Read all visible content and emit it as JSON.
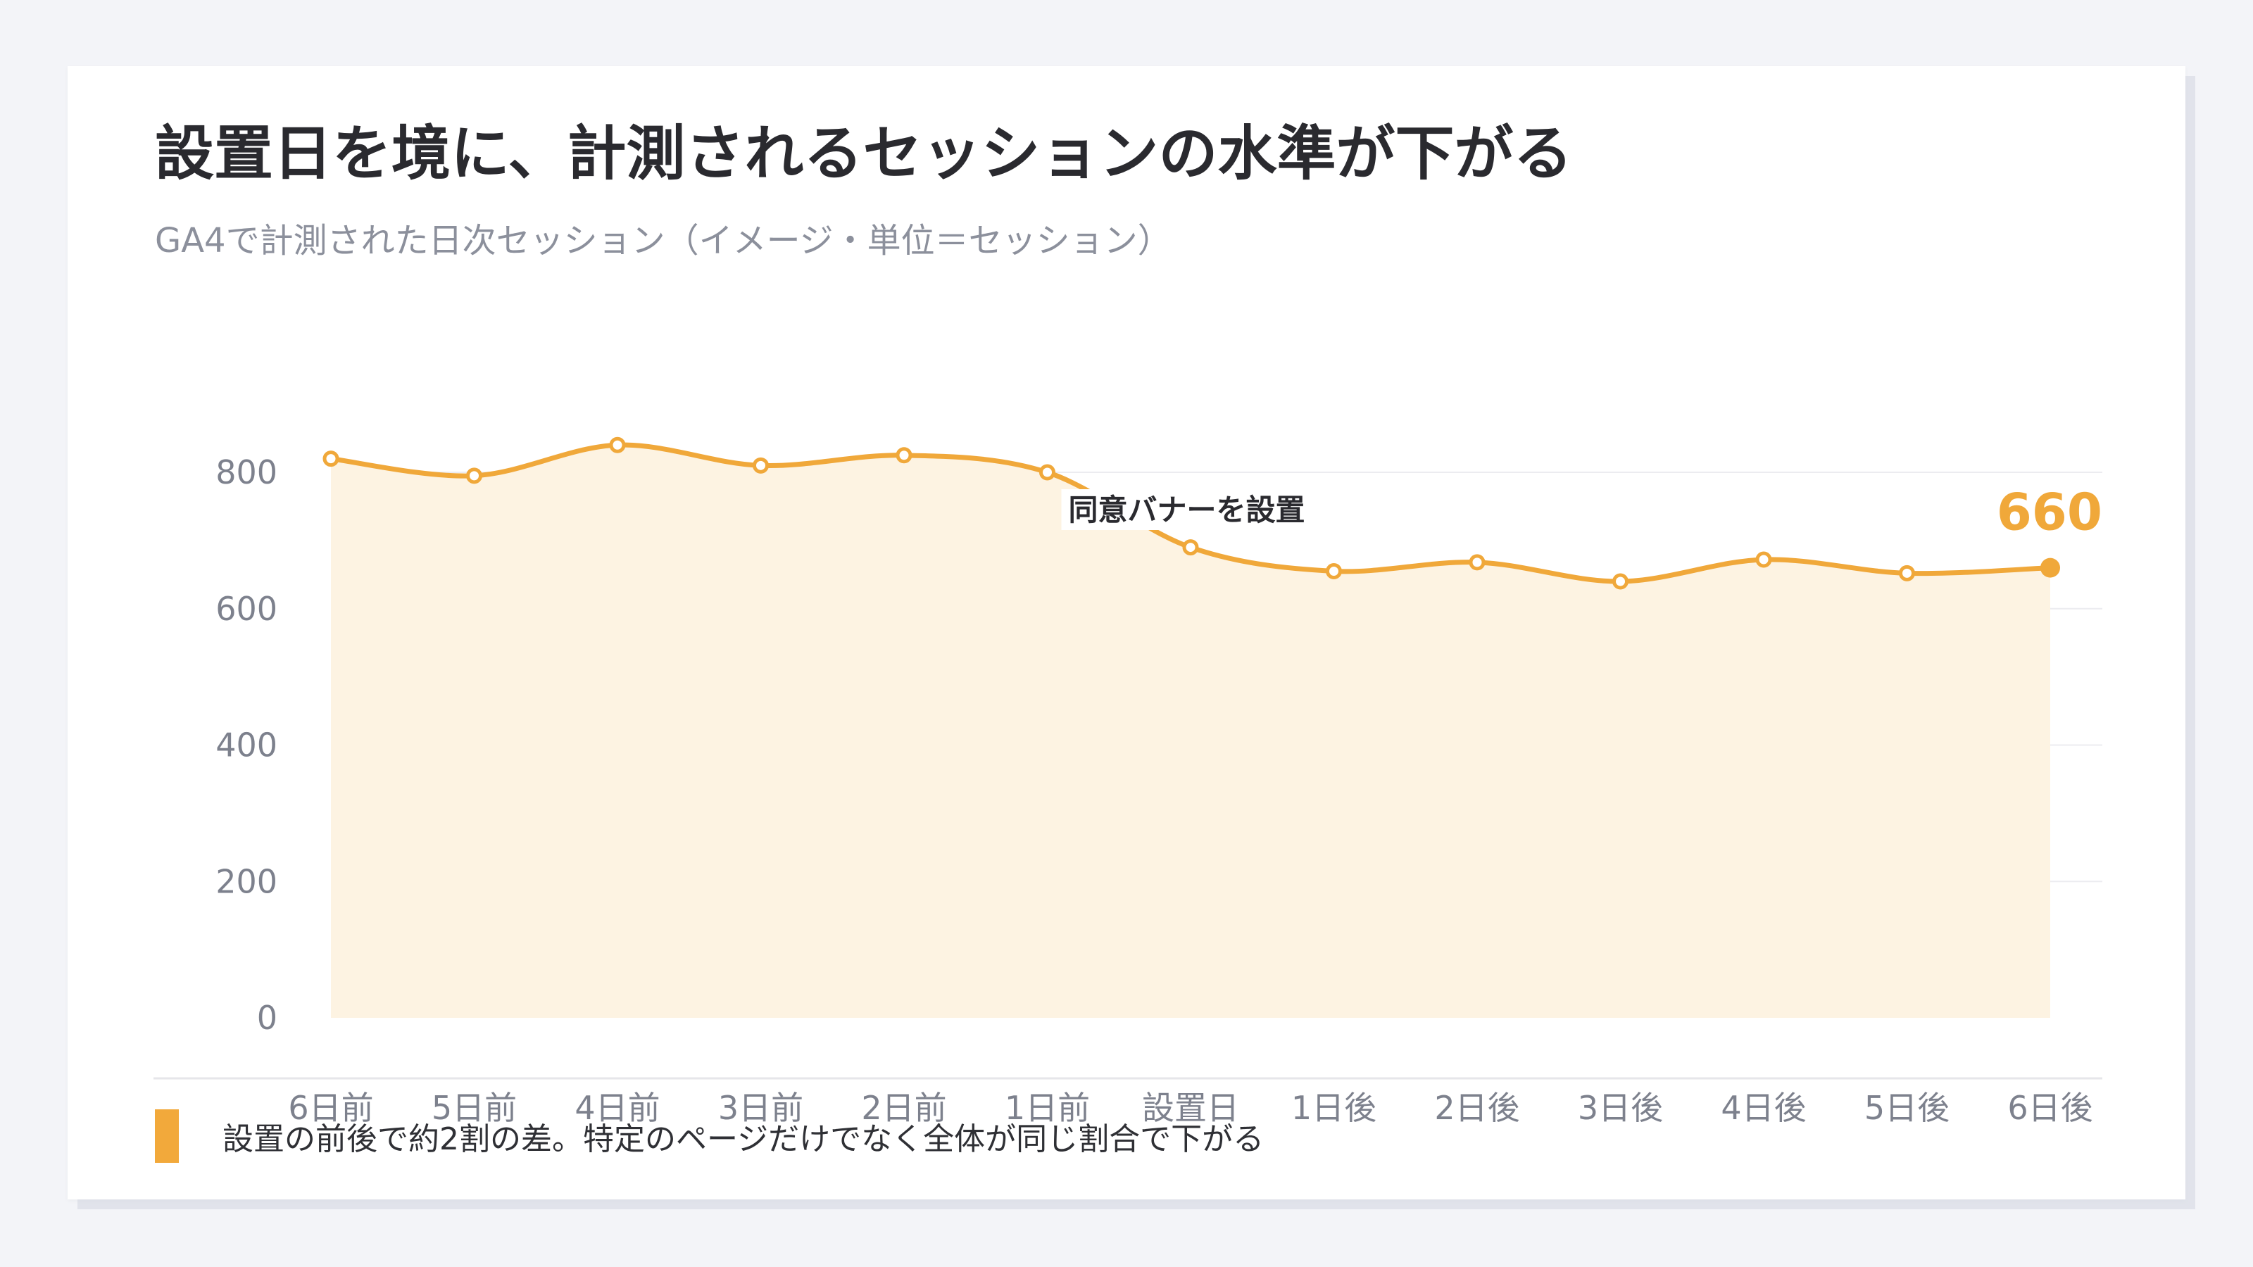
{
  "header": {
    "title": "設置日を境に、計測されるセッションの水準が下がる",
    "subtitle": "GA4で計測された日次セッション（イメージ・単位＝セッション）"
  },
  "chart_data": {
    "type": "area",
    "categories": [
      "6日前",
      "5日前",
      "4日前",
      "3日前",
      "2日前",
      "1日前",
      "設置日",
      "1日後",
      "2日後",
      "3日後",
      "4日後",
      "5日後",
      "6日後"
    ],
    "series": [
      {
        "values": [
          820,
          795,
          840,
          810,
          825,
          800,
          690,
          655,
          668,
          640,
          672,
          652,
          660
        ]
      }
    ],
    "ylim": [
      0,
      800
    ],
    "yticks": [
      0,
      200,
      400,
      600,
      800
    ],
    "grid": true,
    "annotation": {
      "label": "同意バナーを設置",
      "category": "1日前"
    },
    "last_value_label": "660"
  },
  "colors": {
    "line": "#f0a83a",
    "fill": "#fdf3e2",
    "grid": "#ececf0",
    "axis_text": "#7d818d"
  },
  "note": {
    "text": "設置の前後で約2割の差。特定のページだけでなく全体が同じ割合で下がる"
  }
}
